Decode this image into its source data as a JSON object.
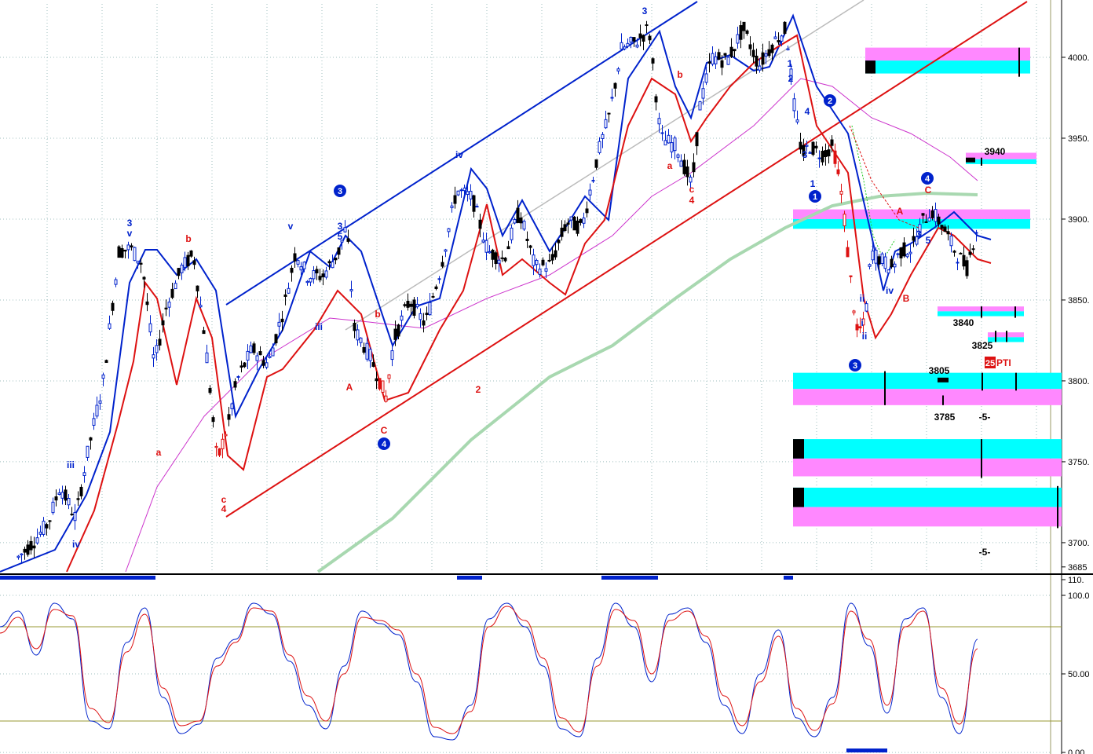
{
  "colors": {
    "blue": "#0022cc",
    "red": "#dd1111",
    "magenta": "#cc33cc",
    "green": "#a8d8b0",
    "gray": "#bbbbbb",
    "cyan": "#00ffff",
    "pink": "#ff88ff",
    "olive": "#999933",
    "grid": "#9fbfbf"
  },
  "chart_data": [
    {
      "type": "candlestick",
      "panel": "price",
      "ylim": [
        3682,
        4033
      ],
      "y_ticks": [
        {
          "label": "4000.",
          "value": 4000
        },
        {
          "label": "3950.",
          "value": 3950
        },
        {
          "label": "3900.",
          "value": 3900
        },
        {
          "label": "3850.",
          "value": 3850
        },
        {
          "label": "3800.",
          "value": 3800
        },
        {
          "label": "3750.",
          "value": 3750
        },
        {
          "label": "3700.",
          "value": 3700
        },
        {
          "label": "3685",
          "value": 3685
        }
      ],
      "target_labels": [
        "3940",
        "3840",
        "3825",
        "3805",
        "3785",
        "-5-",
        "-5-"
      ],
      "badge": {
        "number": "25",
        "text": "PTI"
      },
      "wave_labels": {
        "blue": [
          "3",
          "v",
          "iii",
          "iv",
          "3",
          "5",
          "v",
          "iii",
          "iv",
          "1",
          "3",
          "2",
          "1",
          "4",
          "3",
          "5",
          "ii",
          "iv",
          "i",
          "ii"
        ],
        "red": [
          "a",
          "b",
          "c",
          "4",
          "A",
          "b",
          "C",
          "2",
          "b",
          "a",
          "c",
          "4",
          "A",
          "B",
          "C"
        ],
        "circled": [
          "3",
          "4",
          "2",
          "1",
          "3",
          "4"
        ]
      }
    },
    {
      "type": "line",
      "panel": "stochastic",
      "ylim": [
        0,
        110
      ],
      "y_ticks": [
        {
          "label": "110.",
          "value": 110
        },
        {
          "label": "100.0",
          "value": 100
        },
        {
          "label": "50.00",
          "value": 50
        },
        {
          "label": "0.00",
          "value": 0
        }
      ],
      "reference_lines": [
        80,
        20
      ],
      "series": [
        {
          "values": [
            80,
            90,
            62,
            95,
            85,
            20,
            15,
            70,
            92,
            35,
            12,
            18,
            60,
            72,
            95,
            88,
            58,
            30,
            15,
            55,
            90,
            82,
            75,
            45,
            10,
            8,
            30,
            85,
            95,
            80,
            55,
            15,
            10,
            60,
            95,
            80,
            45,
            88,
            92,
            70,
            30,
            12,
            50,
            78,
            22,
            10,
            35,
            95,
            68,
            25,
            85,
            92,
            35,
            12,
            72
          ]
        },
        {
          "values": [
            76,
            86,
            66,
            91,
            87,
            28,
            19,
            64,
            88,
            41,
            17,
            20,
            55,
            70,
            92,
            90,
            62,
            36,
            20,
            50,
            86,
            84,
            78,
            50,
            16,
            12,
            26,
            80,
            93,
            84,
            60,
            22,
            13,
            55,
            91,
            84,
            50,
            84,
            90,
            74,
            36,
            17,
            45,
            74,
            28,
            14,
            31,
            90,
            72,
            30,
            80,
            90,
            41,
            18,
            66
          ]
        }
      ]
    }
  ]
}
